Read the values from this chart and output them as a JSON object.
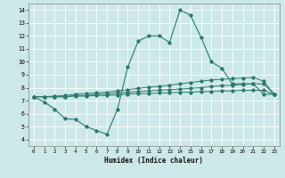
{
  "bg_color": "#cce8e8",
  "grid_color": "#ffffff",
  "line_color": "#2a7a6a",
  "xlabel": "Humidex (Indice chaleur)",
  "ylabel": "",
  "xlim": [
    -0.5,
    23.5
  ],
  "ylim": [
    3.5,
    14.5
  ],
  "yticks": [
    4,
    5,
    6,
    7,
    8,
    9,
    10,
    11,
    12,
    13,
    14
  ],
  "xticks": [
    0,
    1,
    2,
    3,
    4,
    5,
    6,
    7,
    8,
    9,
    10,
    11,
    12,
    13,
    14,
    15,
    16,
    17,
    18,
    19,
    20,
    21,
    22,
    23
  ],
  "line1_x": [
    0,
    1,
    2,
    3,
    4,
    5,
    6,
    7,
    8,
    9,
    10,
    11,
    12,
    13,
    14,
    15,
    16,
    17,
    18,
    19,
    20,
    21,
    22,
    23
  ],
  "line1_y": [
    7.3,
    6.9,
    6.35,
    5.6,
    5.55,
    5.0,
    4.7,
    4.4,
    6.3,
    9.6,
    11.6,
    12.0,
    12.0,
    11.5,
    14.0,
    13.6,
    11.9,
    10.0,
    9.5,
    8.3,
    8.3,
    8.3,
    7.5,
    7.5
  ],
  "line2_x": [
    0,
    1,
    2,
    3,
    4,
    5,
    6,
    7,
    8,
    9,
    10,
    11,
    12,
    13,
    14,
    15,
    16,
    17,
    18,
    19,
    20,
    21,
    22,
    23
  ],
  "line2_y": [
    7.3,
    7.3,
    7.3,
    7.3,
    7.35,
    7.35,
    7.4,
    7.4,
    7.45,
    7.5,
    7.55,
    7.55,
    7.6,
    7.6,
    7.65,
    7.65,
    7.7,
    7.7,
    7.75,
    7.75,
    7.8,
    7.8,
    7.8,
    7.5
  ],
  "line3_x": [
    0,
    1,
    2,
    3,
    4,
    5,
    6,
    7,
    8,
    9,
    10,
    11,
    12,
    13,
    14,
    15,
    16,
    17,
    18,
    19,
    20,
    21,
    22,
    23
  ],
  "line3_y": [
    7.3,
    7.3,
    7.3,
    7.3,
    7.4,
    7.4,
    7.5,
    7.5,
    7.6,
    7.65,
    7.7,
    7.75,
    7.8,
    7.85,
    7.9,
    7.95,
    8.0,
    8.1,
    8.15,
    8.2,
    8.25,
    8.3,
    8.3,
    7.5
  ],
  "line4_x": [
    0,
    1,
    2,
    3,
    4,
    5,
    6,
    7,
    8,
    9,
    10,
    11,
    12,
    13,
    14,
    15,
    16,
    17,
    18,
    19,
    20,
    21,
    22,
    23
  ],
  "line4_y": [
    7.3,
    7.3,
    7.35,
    7.4,
    7.5,
    7.55,
    7.6,
    7.65,
    7.75,
    7.85,
    7.95,
    8.05,
    8.1,
    8.2,
    8.3,
    8.4,
    8.5,
    8.6,
    8.65,
    8.7,
    8.75,
    8.8,
    8.5,
    7.5
  ]
}
